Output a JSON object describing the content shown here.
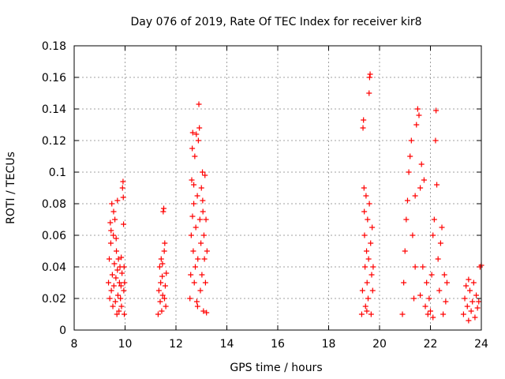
{
  "chart_data": {
    "type": "scatter",
    "title": "Day 076 of 2019, Rate Of TEC Index for receiver kir8",
    "xlabel": "GPS time / hours",
    "ylabel": "ROTI / TECUs",
    "xlim": [
      8,
      24
    ],
    "ylim": [
      0,
      0.18
    ],
    "xticks": [
      8,
      10,
      12,
      14,
      16,
      18,
      20,
      22,
      24
    ],
    "yticks": [
      0,
      0.02,
      0.04,
      0.06,
      0.08,
      0.1,
      0.12,
      0.14,
      0.16,
      0.18
    ],
    "xtick_labels": [
      "8",
      "10",
      "12",
      "14",
      "16",
      "18",
      "20",
      "22",
      "24"
    ],
    "ytick_labels": [
      "0",
      "0.02",
      "0.04",
      "0.06",
      "0.08",
      "0.1",
      "0.12",
      "0.14",
      "0.16",
      "0.18"
    ],
    "grid": true,
    "marker": "+",
    "series": [
      {
        "name": "ROTI",
        "color": "#ff0000",
        "points": [
          [
            9.35,
            0.03
          ],
          [
            9.38,
            0.045
          ],
          [
            9.4,
            0.02
          ],
          [
            9.42,
            0.068
          ],
          [
            9.44,
            0.055
          ],
          [
            9.46,
            0.025
          ],
          [
            9.48,
            0.08
          ],
          [
            9.5,
            0.035
          ],
          [
            9.52,
            0.015
          ],
          [
            9.54,
            0.06
          ],
          [
            9.56,
            0.028
          ],
          [
            9.58,
            0.042
          ],
          [
            9.6,
            0.07
          ],
          [
            9.62,
            0.018
          ],
          [
            9.64,
            0.033
          ],
          [
            9.66,
            0.05
          ],
          [
            9.68,
            0.01
          ],
          [
            9.7,
            0.038
          ],
          [
            9.72,
            0.022
          ],
          [
            9.74,
            0.045
          ],
          [
            9.76,
            0.012
          ],
          [
            9.78,
            0.03
          ],
          [
            9.8,
            0.04
          ],
          [
            9.82,
            0.02
          ],
          [
            9.84,
            0.028
          ],
          [
            9.86,
            0.015
          ],
          [
            9.88,
            0.036
          ],
          [
            9.9,
            0.09
          ],
          [
            9.92,
            0.094
          ],
          [
            9.93,
            0.084
          ],
          [
            9.94,
            0.067
          ],
          [
            9.95,
            0.025
          ],
          [
            9.96,
            0.04
          ],
          [
            9.97,
            0.01
          ],
          [
            9.98,
            0.03
          ],
          [
            9.7,
            0.082
          ],
          [
            9.55,
            0.075
          ],
          [
            9.45,
            0.063
          ],
          [
            9.65,
            0.058
          ],
          [
            9.85,
            0.046
          ],
          [
            11.3,
            0.01
          ],
          [
            11.33,
            0.025
          ],
          [
            11.36,
            0.04
          ],
          [
            11.38,
            0.018
          ],
          [
            11.4,
            0.03
          ],
          [
            11.42,
            0.045
          ],
          [
            11.44,
            0.012
          ],
          [
            11.46,
            0.034
          ],
          [
            11.48,
            0.022
          ],
          [
            11.5,
            0.075
          ],
          [
            11.52,
            0.077
          ],
          [
            11.54,
            0.05
          ],
          [
            11.56,
            0.055
          ],
          [
            11.58,
            0.028
          ],
          [
            11.6,
            0.015
          ],
          [
            11.62,
            0.036
          ],
          [
            11.55,
            0.02
          ],
          [
            11.47,
            0.042
          ],
          [
            12.55,
            0.02
          ],
          [
            12.58,
            0.035
          ],
          [
            12.6,
            0.06
          ],
          [
            12.62,
            0.095
          ],
          [
            12.64,
            0.115
          ],
          [
            12.66,
            0.125
          ],
          [
            12.68,
            0.05
          ],
          [
            12.7,
            0.08
          ],
          [
            12.72,
            0.03
          ],
          [
            12.74,
            0.11
          ],
          [
            12.76,
            0.04
          ],
          [
            12.78,
            0.065
          ],
          [
            12.8,
            0.124
          ],
          [
            12.82,
            0.018
          ],
          [
            12.84,
            0.085
          ],
          [
            12.86,
            0.045
          ],
          [
            12.88,
            0.12
          ],
          [
            12.9,
            0.143
          ],
          [
            12.92,
            0.128
          ],
          [
            12.94,
            0.07
          ],
          [
            12.96,
            0.025
          ],
          [
            12.98,
            0.055
          ],
          [
            13.0,
            0.09
          ],
          [
            13.02,
            0.035
          ],
          [
            13.04,
            0.1
          ],
          [
            13.06,
            0.075
          ],
          [
            13.08,
            0.012
          ],
          [
            13.1,
            0.06
          ],
          [
            13.12,
            0.045
          ],
          [
            13.14,
            0.098
          ],
          [
            13.16,
            0.03
          ],
          [
            13.18,
            0.07
          ],
          [
            13.2,
            0.011
          ],
          [
            13.22,
            0.05
          ],
          [
            12.7,
            0.092
          ],
          [
            12.65,
            0.072
          ],
          [
            13.05,
            0.082
          ],
          [
            12.85,
            0.015
          ],
          [
            19.3,
            0.01
          ],
          [
            19.33,
            0.025
          ],
          [
            19.35,
            0.128
          ],
          [
            19.37,
            0.133
          ],
          [
            19.39,
            0.09
          ],
          [
            19.41,
            0.06
          ],
          [
            19.43,
            0.04
          ],
          [
            19.45,
            0.015
          ],
          [
            19.47,
            0.085
          ],
          [
            19.49,
            0.05
          ],
          [
            19.51,
            0.03
          ],
          [
            19.53,
            0.07
          ],
          [
            19.55,
            0.02
          ],
          [
            19.57,
            0.045
          ],
          [
            19.59,
            0.15
          ],
          [
            19.61,
            0.16
          ],
          [
            19.63,
            0.162
          ],
          [
            19.65,
            0.055
          ],
          [
            19.67,
            0.01
          ],
          [
            19.69,
            0.035
          ],
          [
            19.71,
            0.065
          ],
          [
            19.73,
            0.025
          ],
          [
            19.75,
            0.04
          ],
          [
            19.6,
            0.08
          ],
          [
            19.5,
            0.012
          ],
          [
            19.4,
            0.075
          ],
          [
            20.9,
            0.01
          ],
          [
            20.95,
            0.03
          ],
          [
            21.0,
            0.05
          ],
          [
            21.05,
            0.07
          ],
          [
            21.1,
            0.082
          ],
          [
            21.15,
            0.1
          ],
          [
            21.2,
            0.11
          ],
          [
            21.25,
            0.12
          ],
          [
            21.3,
            0.06
          ],
          [
            21.35,
            0.02
          ],
          [
            21.4,
            0.085
          ],
          [
            21.45,
            0.13
          ],
          [
            21.5,
            0.14
          ],
          [
            21.55,
            0.136
          ],
          [
            21.6,
            0.09
          ],
          [
            21.65,
            0.105
          ],
          [
            21.7,
            0.04
          ],
          [
            21.75,
            0.095
          ],
          [
            21.8,
            0.015
          ],
          [
            21.85,
            0.03
          ],
          [
            21.9,
            0.01
          ],
          [
            21.95,
            0.02
          ],
          [
            22.0,
            0.012
          ],
          [
            22.05,
            0.035
          ],
          [
            22.1,
            0.06
          ],
          [
            22.15,
            0.07
          ],
          [
            22.2,
            0.12
          ],
          [
            22.22,
            0.139
          ],
          [
            22.25,
            0.092
          ],
          [
            22.3,
            0.045
          ],
          [
            22.35,
            0.025
          ],
          [
            22.4,
            0.055
          ],
          [
            22.45,
            0.065
          ],
          [
            22.5,
            0.01
          ],
          [
            22.55,
            0.035
          ],
          [
            22.6,
            0.018
          ],
          [
            22.65,
            0.03
          ],
          [
            21.4,
            0.04
          ],
          [
            21.6,
            0.022
          ],
          [
            22.1,
            0.008
          ],
          [
            23.3,
            0.01
          ],
          [
            23.35,
            0.02
          ],
          [
            23.4,
            0.028
          ],
          [
            23.45,
            0.015
          ],
          [
            23.5,
            0.032
          ],
          [
            23.55,
            0.025
          ],
          [
            23.6,
            0.012
          ],
          [
            23.65,
            0.018
          ],
          [
            23.7,
            0.03
          ],
          [
            23.75,
            0.008
          ],
          [
            23.8,
            0.022
          ],
          [
            23.85,
            0.014
          ],
          [
            23.9,
            0.018
          ],
          [
            23.95,
            0.04
          ],
          [
            24.0,
            0.041
          ],
          [
            23.5,
            0.006
          ]
        ]
      }
    ]
  }
}
